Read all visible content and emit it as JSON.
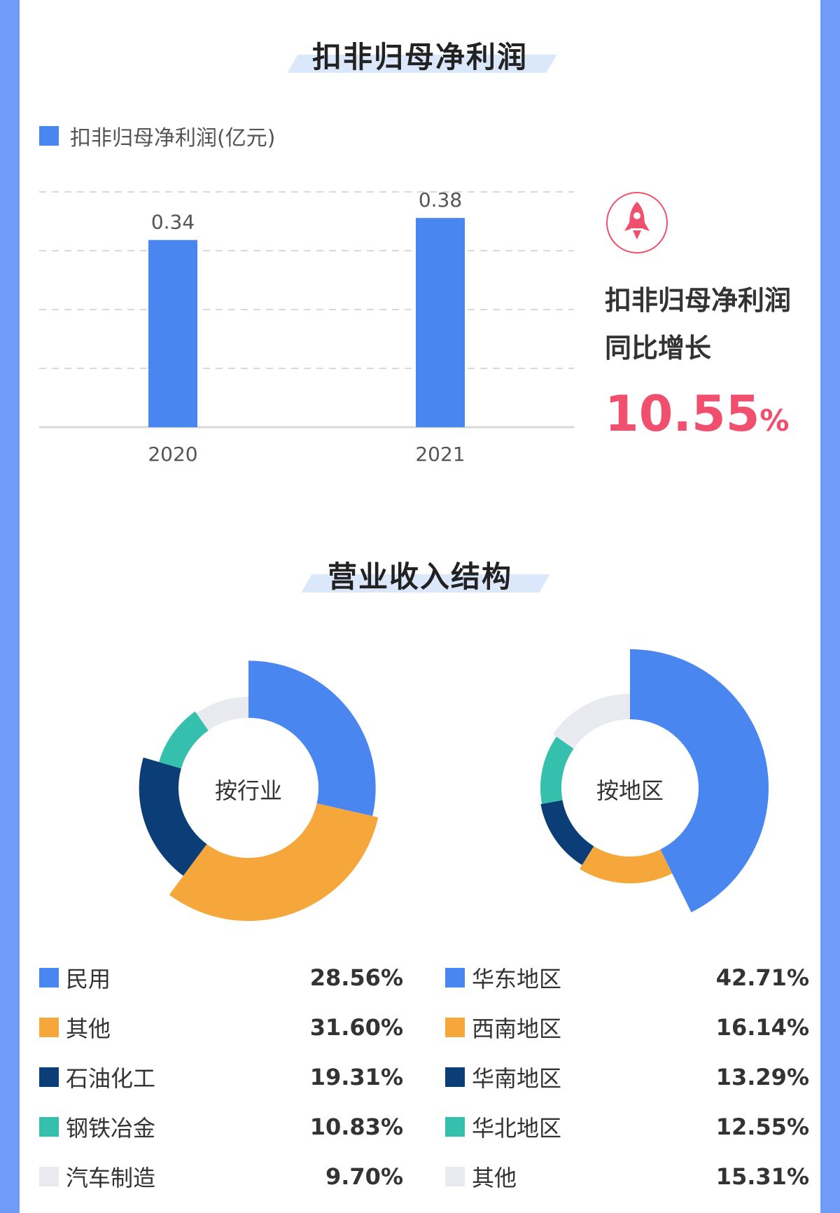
{
  "section1": {
    "title": "扣非归母净利润",
    "legend_label": "扣非归母净利润(亿元)"
  },
  "chart_data": [
    {
      "type": "bar",
      "categories": [
        "2020",
        "2021"
      ],
      "values": [
        0.34,
        0.38
      ],
      "series": [
        {
          "name": "扣非归母净利润(亿元)",
          "values": [
            0.34,
            0.38
          ]
        }
      ],
      "ylim": [
        0,
        0.4
      ],
      "grid": true,
      "legend": "top-left",
      "color": "#4a86f0"
    },
    {
      "type": "pie",
      "center_label": "按行业",
      "labels": [
        "民用",
        "其他",
        "石油化工",
        "钢铁冶金",
        "汽车制造"
      ],
      "values": [
        28.56,
        31.6,
        19.31,
        10.83,
        9.7
      ],
      "display": [
        "28.56%",
        "31.60%",
        "19.31%",
        "10.83%",
        "9.70%"
      ],
      "colors": [
        "#4a86f0",
        "#f5a73b",
        "#0b3d77",
        "#35c0ad",
        "#e8eaf0"
      ]
    },
    {
      "type": "pie",
      "center_label": "按地区",
      "labels": [
        "华东地区",
        "西南地区",
        "华南地区",
        "华北地区",
        "其他"
      ],
      "values": [
        42.71,
        16.14,
        13.29,
        12.55,
        15.31
      ],
      "display": [
        "42.71%",
        "16.14%",
        "13.29%",
        "12.55%",
        "15.31%"
      ],
      "colors": [
        "#4a86f0",
        "#f5a73b",
        "#0b3d77",
        "#35c0ad",
        "#e8eaf0"
      ]
    }
  ],
  "stat": {
    "line1": "扣非归母净利润",
    "line2": "同比增长",
    "value": "10.55",
    "unit": "%",
    "icon": "rocket-icon",
    "accent": "#f0506e"
  },
  "section2": {
    "title": "营业收入结构"
  }
}
